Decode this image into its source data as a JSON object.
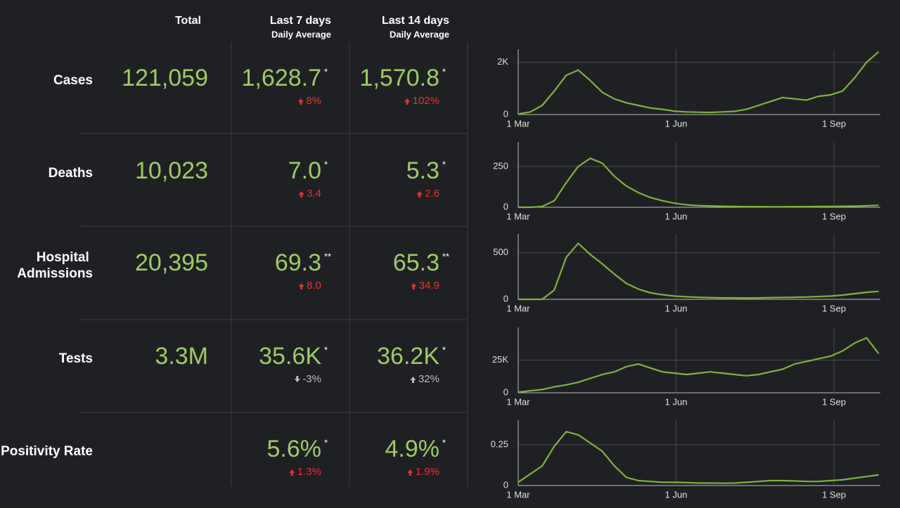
{
  "header": {
    "total": "Total",
    "last7": "Last 7 days",
    "last7_sub": "Daily Average",
    "last14": "Last 14 days",
    "last14_sub": "Daily Average"
  },
  "rows": [
    {
      "label": "Cases",
      "total": "121,059",
      "avg7": {
        "value": "1,628.7",
        "note": "*",
        "change": "8%",
        "trend": "up",
        "color": "#e0342f"
      },
      "avg14": {
        "value": "1,570.8",
        "note": "*",
        "change": "102%",
        "trend": "up",
        "color": "#e0342f"
      }
    },
    {
      "label": "Deaths",
      "total": "10,023",
      "avg7": {
        "value": "7.0",
        "note": "*",
        "change": "3.4",
        "trend": "up",
        "color": "#e0342f"
      },
      "avg14": {
        "value": "5.3",
        "note": "*",
        "change": "2.6",
        "trend": "up",
        "color": "#e0342f"
      }
    },
    {
      "label": "Hospital Admissions",
      "total": "20,395",
      "avg7": {
        "value": "69.3",
        "note": "**",
        "change": "8.0",
        "trend": "up",
        "color": "#e0342f"
      },
      "avg14": {
        "value": "65.3",
        "note": "**",
        "change": "34.9",
        "trend": "up",
        "color": "#e0342f"
      }
    },
    {
      "label": "Tests",
      "total": "3.3M",
      "avg7": {
        "value": "35.6K",
        "note": "*",
        "change": "-3%",
        "trend": "down",
        "color": "#bdbdbd"
      },
      "avg14": {
        "value": "36.2K",
        "note": "*",
        "change": "32%",
        "trend": "up",
        "color": "#bdbdbd"
      }
    },
    {
      "label": "Positivity Rate",
      "avg7": {
        "value": "5.6%",
        "note": "*",
        "change": "1.3%",
        "trend": "up",
        "color": "#e0342f"
      },
      "avg14": {
        "value": "4.9%",
        "note": "*",
        "change": "1.9%",
        "trend": "up",
        "color": "#e0342f"
      }
    }
  ],
  "charts": [
    {
      "type": "line",
      "color": "#7cb342",
      "xlim": [
        0,
        211
      ],
      "xticks": [
        {
          "value": 0,
          "label": "1 Mar"
        },
        {
          "value": 92,
          "label": "1 Jun"
        },
        {
          "value": 184,
          "label": "1 Sep"
        }
      ],
      "ylim": [
        0,
        2500
      ],
      "yticks": [
        0,
        {
          "value": 2000,
          "label": "2K"
        }
      ],
      "x": [
        0,
        7,
        14,
        21,
        28,
        35,
        42,
        49,
        56,
        63,
        70,
        77,
        84,
        91,
        98,
        105,
        112,
        119,
        126,
        133,
        140,
        147,
        154,
        161,
        168,
        175,
        182,
        189,
        196,
        203,
        210
      ],
      "values": [
        20,
        100,
        350,
        900,
        1500,
        1700,
        1300,
        850,
        600,
        450,
        350,
        250,
        200,
        130,
        100,
        90,
        80,
        100,
        120,
        200,
        350,
        500,
        650,
        600,
        550,
        700,
        750,
        900,
        1400,
        2000,
        2400
      ]
    },
    {
      "type": "line",
      "color": "#7cb342",
      "xlim": [
        0,
        211
      ],
      "xticks": [
        {
          "value": 0,
          "label": "1 Mar"
        },
        {
          "value": 92,
          "label": "1 Jun"
        },
        {
          "value": 184,
          "label": "1 Sep"
        }
      ],
      "ylim": [
        0,
        400
      ],
      "yticks": [
        0,
        250
      ],
      "x": [
        0,
        7,
        14,
        21,
        28,
        35,
        42,
        49,
        56,
        63,
        70,
        77,
        84,
        91,
        98,
        105,
        112,
        119,
        126,
        133,
        140,
        147,
        154,
        161,
        168,
        175,
        182,
        189,
        196,
        203,
        210
      ],
      "values": [
        0,
        0,
        5,
        40,
        150,
        250,
        300,
        270,
        190,
        130,
        90,
        60,
        40,
        25,
        15,
        10,
        8,
        6,
        5,
        4,
        4,
        3,
        3,
        4,
        4,
        5,
        5,
        6,
        7,
        9,
        12
      ]
    },
    {
      "type": "line",
      "color": "#7cb342",
      "xlim": [
        0,
        211
      ],
      "xticks": [
        {
          "value": 0,
          "label": "1 Mar"
        },
        {
          "value": 92,
          "label": "1 Jun"
        },
        {
          "value": 184,
          "label": "1 Sep"
        }
      ],
      "ylim": [
        0,
        700
      ],
      "yticks": [
        0,
        500
      ],
      "x": [
        0,
        7,
        14,
        21,
        28,
        35,
        42,
        49,
        56,
        63,
        70,
        77,
        84,
        91,
        98,
        105,
        112,
        119,
        126,
        133,
        140,
        147,
        154,
        161,
        168,
        175,
        182,
        189,
        196,
        203,
        210
      ],
      "values": [
        0,
        0,
        0,
        100,
        450,
        600,
        480,
        380,
        270,
        170,
        110,
        70,
        50,
        35,
        28,
        22,
        18,
        15,
        15,
        14,
        15,
        18,
        20,
        22,
        25,
        30,
        35,
        45,
        60,
        75,
        85
      ]
    },
    {
      "type": "line",
      "color": "#7cb342",
      "xlim": [
        0,
        211
      ],
      "xticks": [
        {
          "value": 0,
          "label": "1 Mar"
        },
        {
          "value": 92,
          "label": "1 Jun"
        },
        {
          "value": 184,
          "label": "1 Sep"
        }
      ],
      "ylim": [
        0,
        50000
      ],
      "yticks": [
        0,
        {
          "value": 25000,
          "label": "25K"
        }
      ],
      "x": [
        0,
        7,
        14,
        21,
        28,
        35,
        42,
        49,
        56,
        63,
        70,
        77,
        84,
        91,
        98,
        105,
        112,
        119,
        126,
        133,
        140,
        147,
        154,
        161,
        168,
        175,
        182,
        189,
        196,
        203,
        210
      ],
      "values": [
        500,
        1500,
        2500,
        4500,
        6000,
        8000,
        11000,
        14000,
        16000,
        20000,
        22000,
        19000,
        16000,
        15000,
        14000,
        15000,
        16000,
        15000,
        14000,
        13000,
        14000,
        16000,
        18000,
        22000,
        24000,
        26000,
        28000,
        32000,
        38000,
        42000,
        30000
      ]
    },
    {
      "type": "line",
      "color": "#7cb342",
      "xlim": [
        0,
        211
      ],
      "xticks": [
        {
          "value": 0,
          "label": "1 Mar"
        },
        {
          "value": 92,
          "label": "1 Jun"
        },
        {
          "value": 184,
          "label": "1 Sep"
        }
      ],
      "ylim": [
        0,
        0.4
      ],
      "yticks": [
        0,
        0.25
      ],
      "x": [
        0,
        7,
        14,
        21,
        28,
        35,
        42,
        49,
        56,
        63,
        70,
        77,
        84,
        91,
        98,
        105,
        112,
        119,
        126,
        133,
        140,
        147,
        154,
        161,
        168,
        175,
        182,
        189,
        196,
        203,
        210
      ],
      "values": [
        0.02,
        0.07,
        0.12,
        0.24,
        0.33,
        0.31,
        0.26,
        0.21,
        0.12,
        0.05,
        0.03,
        0.025,
        0.02,
        0.02,
        0.018,
        0.015,
        0.015,
        0.014,
        0.015,
        0.02,
        0.025,
        0.03,
        0.03,
        0.028,
        0.025,
        0.025,
        0.03,
        0.035,
        0.045,
        0.055,
        0.065
      ]
    }
  ]
}
